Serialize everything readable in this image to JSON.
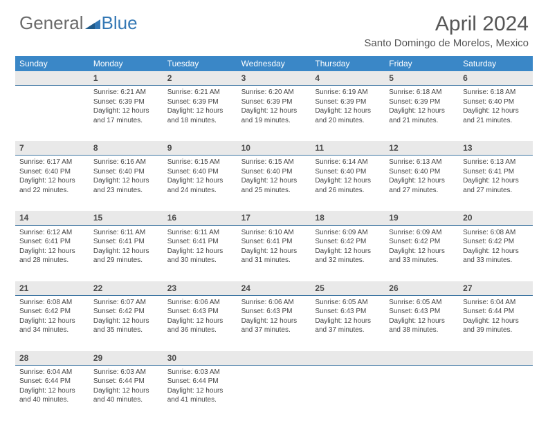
{
  "brand": {
    "part1": "General",
    "part2": "Blue"
  },
  "title": "April 2024",
  "location": "Santo Domingo de Morelos, Mexico",
  "colors": {
    "header_bg": "#3a87c7",
    "header_text": "#ffffff",
    "daynum_bg": "#e9e9e9",
    "daynum_border": "#3a73a0",
    "text": "#444444",
    "brand_gray": "#6a6a6a",
    "brand_blue": "#3478b5"
  },
  "days_of_week": [
    "Sunday",
    "Monday",
    "Tuesday",
    "Wednesday",
    "Thursday",
    "Friday",
    "Saturday"
  ],
  "weeks": [
    {
      "nums": [
        "",
        "1",
        "2",
        "3",
        "4",
        "5",
        "6"
      ],
      "cells": [
        {
          "lines": []
        },
        {
          "lines": [
            "Sunrise: 6:21 AM",
            "Sunset: 6:39 PM",
            "Daylight: 12 hours",
            "and 17 minutes."
          ]
        },
        {
          "lines": [
            "Sunrise: 6:21 AM",
            "Sunset: 6:39 PM",
            "Daylight: 12 hours",
            "and 18 minutes."
          ]
        },
        {
          "lines": [
            "Sunrise: 6:20 AM",
            "Sunset: 6:39 PM",
            "Daylight: 12 hours",
            "and 19 minutes."
          ]
        },
        {
          "lines": [
            "Sunrise: 6:19 AM",
            "Sunset: 6:39 PM",
            "Daylight: 12 hours",
            "and 20 minutes."
          ]
        },
        {
          "lines": [
            "Sunrise: 6:18 AM",
            "Sunset: 6:39 PM",
            "Daylight: 12 hours",
            "and 21 minutes."
          ]
        },
        {
          "lines": [
            "Sunrise: 6:18 AM",
            "Sunset: 6:40 PM",
            "Daylight: 12 hours",
            "and 21 minutes."
          ]
        }
      ]
    },
    {
      "nums": [
        "7",
        "8",
        "9",
        "10",
        "11",
        "12",
        "13"
      ],
      "cells": [
        {
          "lines": [
            "Sunrise: 6:17 AM",
            "Sunset: 6:40 PM",
            "Daylight: 12 hours",
            "and 22 minutes."
          ]
        },
        {
          "lines": [
            "Sunrise: 6:16 AM",
            "Sunset: 6:40 PM",
            "Daylight: 12 hours",
            "and 23 minutes."
          ]
        },
        {
          "lines": [
            "Sunrise: 6:15 AM",
            "Sunset: 6:40 PM",
            "Daylight: 12 hours",
            "and 24 minutes."
          ]
        },
        {
          "lines": [
            "Sunrise: 6:15 AM",
            "Sunset: 6:40 PM",
            "Daylight: 12 hours",
            "and 25 minutes."
          ]
        },
        {
          "lines": [
            "Sunrise: 6:14 AM",
            "Sunset: 6:40 PM",
            "Daylight: 12 hours",
            "and 26 minutes."
          ]
        },
        {
          "lines": [
            "Sunrise: 6:13 AM",
            "Sunset: 6:40 PM",
            "Daylight: 12 hours",
            "and 27 minutes."
          ]
        },
        {
          "lines": [
            "Sunrise: 6:13 AM",
            "Sunset: 6:41 PM",
            "Daylight: 12 hours",
            "and 27 minutes."
          ]
        }
      ]
    },
    {
      "nums": [
        "14",
        "15",
        "16",
        "17",
        "18",
        "19",
        "20"
      ],
      "cells": [
        {
          "lines": [
            "Sunrise: 6:12 AM",
            "Sunset: 6:41 PM",
            "Daylight: 12 hours",
            "and 28 minutes."
          ]
        },
        {
          "lines": [
            "Sunrise: 6:11 AM",
            "Sunset: 6:41 PM",
            "Daylight: 12 hours",
            "and 29 minutes."
          ]
        },
        {
          "lines": [
            "Sunrise: 6:11 AM",
            "Sunset: 6:41 PM",
            "Daylight: 12 hours",
            "and 30 minutes."
          ]
        },
        {
          "lines": [
            "Sunrise: 6:10 AM",
            "Sunset: 6:41 PM",
            "Daylight: 12 hours",
            "and 31 minutes."
          ]
        },
        {
          "lines": [
            "Sunrise: 6:09 AM",
            "Sunset: 6:42 PM",
            "Daylight: 12 hours",
            "and 32 minutes."
          ]
        },
        {
          "lines": [
            "Sunrise: 6:09 AM",
            "Sunset: 6:42 PM",
            "Daylight: 12 hours",
            "and 33 minutes."
          ]
        },
        {
          "lines": [
            "Sunrise: 6:08 AM",
            "Sunset: 6:42 PM",
            "Daylight: 12 hours",
            "and 33 minutes."
          ]
        }
      ]
    },
    {
      "nums": [
        "21",
        "22",
        "23",
        "24",
        "25",
        "26",
        "27"
      ],
      "cells": [
        {
          "lines": [
            "Sunrise: 6:08 AM",
            "Sunset: 6:42 PM",
            "Daylight: 12 hours",
            "and 34 minutes."
          ]
        },
        {
          "lines": [
            "Sunrise: 6:07 AM",
            "Sunset: 6:42 PM",
            "Daylight: 12 hours",
            "and 35 minutes."
          ]
        },
        {
          "lines": [
            "Sunrise: 6:06 AM",
            "Sunset: 6:43 PM",
            "Daylight: 12 hours",
            "and 36 minutes."
          ]
        },
        {
          "lines": [
            "Sunrise: 6:06 AM",
            "Sunset: 6:43 PM",
            "Daylight: 12 hours",
            "and 37 minutes."
          ]
        },
        {
          "lines": [
            "Sunrise: 6:05 AM",
            "Sunset: 6:43 PM",
            "Daylight: 12 hours",
            "and 37 minutes."
          ]
        },
        {
          "lines": [
            "Sunrise: 6:05 AM",
            "Sunset: 6:43 PM",
            "Daylight: 12 hours",
            "and 38 minutes."
          ]
        },
        {
          "lines": [
            "Sunrise: 6:04 AM",
            "Sunset: 6:44 PM",
            "Daylight: 12 hours",
            "and 39 minutes."
          ]
        }
      ]
    },
    {
      "nums": [
        "28",
        "29",
        "30",
        "",
        "",
        "",
        ""
      ],
      "cells": [
        {
          "lines": [
            "Sunrise: 6:04 AM",
            "Sunset: 6:44 PM",
            "Daylight: 12 hours",
            "and 40 minutes."
          ]
        },
        {
          "lines": [
            "Sunrise: 6:03 AM",
            "Sunset: 6:44 PM",
            "Daylight: 12 hours",
            "and 40 minutes."
          ]
        },
        {
          "lines": [
            "Sunrise: 6:03 AM",
            "Sunset: 6:44 PM",
            "Daylight: 12 hours",
            "and 41 minutes."
          ]
        },
        {
          "lines": []
        },
        {
          "lines": []
        },
        {
          "lines": []
        },
        {
          "lines": []
        }
      ]
    }
  ]
}
